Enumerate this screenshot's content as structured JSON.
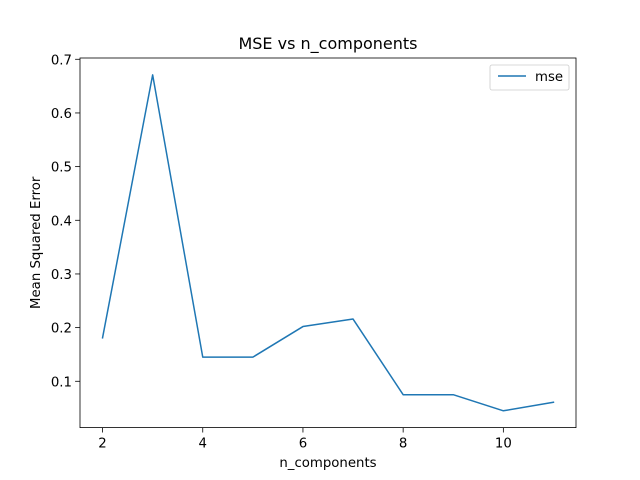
{
  "chart_data": {
    "type": "line",
    "title": "MSE vs n_components",
    "xlabel": "n_components",
    "ylabel": "Mean Squared Error",
    "x": [
      2,
      3,
      4,
      5,
      6,
      7,
      8,
      9,
      10,
      11
    ],
    "series": [
      {
        "name": "mse",
        "color": "#1f77b4",
        "values": [
          0.181,
          0.671,
          0.145,
          0.145,
          0.202,
          0.216,
          0.075,
          0.075,
          0.045,
          0.061
        ]
      }
    ],
    "xticks": [
      2,
      4,
      6,
      8,
      10
    ],
    "xtick_labels": [
      "2",
      "4",
      "6",
      "8",
      "10"
    ],
    "yticks": [
      0.1,
      0.2,
      0.3,
      0.4,
      0.5,
      0.6,
      0.7
    ],
    "ytick_labels": [
      "0.1",
      "0.2",
      "0.3",
      "0.4",
      "0.5",
      "0.6",
      "0.7"
    ],
    "xlim": [
      1.55,
      11.45
    ],
    "ylim": [
      0.0137,
      0.7024
    ],
    "grid": false,
    "legend": "top-right"
  }
}
